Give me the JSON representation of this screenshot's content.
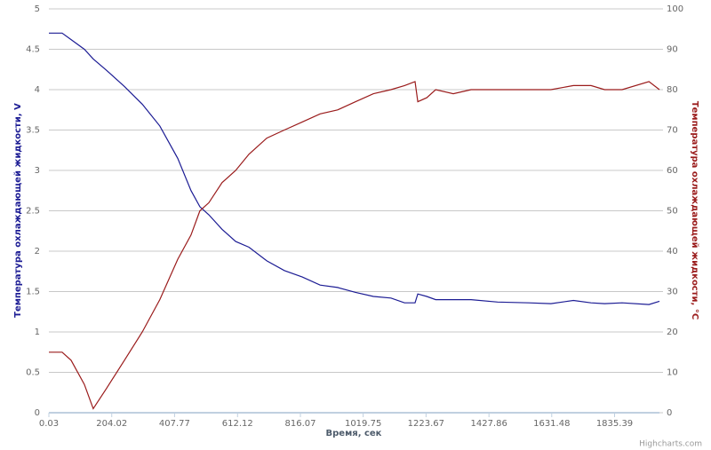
{
  "chart_data": {
    "type": "line",
    "x_label": "Время, сек",
    "y_label": "Температура охлаждающей жидкости, V",
    "y2_label": "Температура охлаждающей жидкости, °C",
    "credits": "Highcharts.com",
    "x": [
      0.03,
      43,
      72,
      115,
      144,
      187,
      245,
      303,
      360,
      418,
      461,
      490,
      519,
      562,
      606,
      649,
      707,
      764,
      822,
      880,
      937,
      995,
      1053,
      1110,
      1154,
      1188,
      1197,
      1226,
      1255,
      1312,
      1370,
      1456,
      1557,
      1629,
      1702,
      1759,
      1803,
      1860,
      1947,
      1981
    ],
    "series": [
      {
        "name": "Температура охлаждающей жидкости, V",
        "color": "#1c1c94",
        "axis": "y",
        "values": [
          4.7,
          4.7,
          4.62,
          4.5,
          4.38,
          4.24,
          4.04,
          3.82,
          3.55,
          3.15,
          2.75,
          2.55,
          2.45,
          2.27,
          2.12,
          2.05,
          1.88,
          1.76,
          1.68,
          1.58,
          1.55,
          1.49,
          1.44,
          1.42,
          1.36,
          1.36,
          1.47,
          1.44,
          1.4,
          1.4,
          1.4,
          1.37,
          1.36,
          1.35,
          1.39,
          1.36,
          1.35,
          1.36,
          1.34,
          1.38
        ]
      },
      {
        "name": "Температура охлаждающей жидкости, °C",
        "color": "#9a1b1b",
        "axis": "y2",
        "values": [
          15,
          15,
          13,
          7,
          1,
          6,
          13,
          20,
          28,
          38,
          44,
          50,
          52,
          57,
          60,
          64,
          68,
          70,
          72,
          74,
          75,
          77,
          79,
          80,
          81,
          82,
          77,
          78,
          80,
          79,
          80,
          80,
          80,
          80,
          81,
          81,
          80,
          80,
          82,
          80
        ]
      }
    ],
    "xlim": [
      0.03,
      1981
    ],
    "xticks": [
      0.03,
      204.02,
      407.77,
      612.12,
      816.07,
      1019.75,
      1223.67,
      1427.86,
      1631.48,
      1835.39
    ],
    "ylim": [
      0,
      5
    ],
    "yticks": [
      0,
      0.5,
      1,
      1.5,
      2,
      2.5,
      3,
      3.5,
      4,
      4.5,
      5
    ],
    "y2lim": [
      0,
      100
    ],
    "y2ticks": [
      0,
      10,
      20,
      30,
      40,
      50,
      60,
      70,
      80,
      90,
      100
    ],
    "grid": true
  }
}
